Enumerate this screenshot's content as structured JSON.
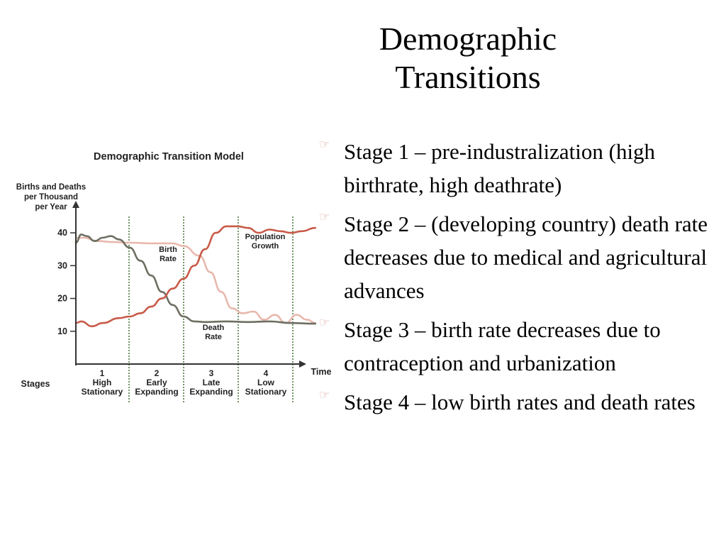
{
  "slide": {
    "title_line1": "Demographic",
    "title_line2": "Transitions",
    "bullets": [
      "Stage 1 – pre-industralization (high birthrate, high deathrate)",
      "Stage 2 – (developing country) death rate decreases due to medical and agricultural advances",
      "Stage 3 – birth rate decreases due to contraception and urbanization",
      "Stage 4 – low birth rates and death rates"
    ],
    "bullet_icon": "pointing-hand-icon"
  },
  "chart_data": {
    "type": "line",
    "title": "Demographic Transition Model",
    "ylabel_lines": [
      "Births and Deaths",
      "per Thousand",
      "per Year"
    ],
    "xlabel": "Time",
    "stages_label": "Stages",
    "yticks": [
      10,
      20,
      30,
      40
    ],
    "ylim": [
      0,
      45
    ],
    "xlim": [
      0,
      4.4
    ],
    "stages": [
      {
        "number": "1",
        "line1": "High",
        "line2": "Stationary"
      },
      {
        "number": "2",
        "line1": "Early",
        "line2": "Expanding"
      },
      {
        "number": "3",
        "line1": "Late",
        "line2": "Expanding"
      },
      {
        "number": "4",
        "line1": "Low",
        "line2": "Stationary"
      }
    ],
    "stage_boundaries": [
      1,
      2,
      3,
      4
    ],
    "annotations": {
      "birth_rate": [
        "Birth",
        "Rate"
      ],
      "death_rate": [
        "Death",
        "Rate"
      ],
      "population_growth": [
        "Population",
        "Growth"
      ]
    },
    "series": [
      {
        "name": "Birth Rate",
        "color": "#e8b8ad",
        "x": [
          0,
          0.15,
          0.4,
          0.7,
          1.0,
          1.4,
          1.8,
          2.0,
          2.3,
          2.5,
          2.7,
          2.9,
          3.1,
          3.3,
          3.5,
          3.7,
          3.9,
          4.1,
          4.3,
          4.45
        ],
        "y": [
          38.5,
          38.5,
          37.5,
          37.2,
          37,
          36.8,
          36.8,
          36,
          33,
          28,
          22,
          17,
          15.5,
          16,
          13.5,
          15,
          12.5,
          15,
          13.5,
          12.5
        ]
      },
      {
        "name": "Death Rate",
        "color": "#6e6e62",
        "x": [
          0,
          0.1,
          0.2,
          0.35,
          0.5,
          0.65,
          0.8,
          1.0,
          1.2,
          1.4,
          1.6,
          1.8,
          2.0,
          2.2,
          2.4,
          2.8,
          3.2,
          3.6,
          4.0,
          4.45
        ],
        "y": [
          37,
          39.5,
          39,
          37.5,
          38.5,
          39,
          38,
          35.5,
          31.5,
          27,
          22,
          18,
          14.5,
          13,
          12.8,
          13,
          12.8,
          13,
          12.5,
          12.3
        ]
      },
      {
        "name": "Population Growth",
        "color": "#c85a48",
        "x": [
          0,
          0.1,
          0.3,
          0.5,
          0.8,
          1.0,
          1.2,
          1.4,
          1.6,
          1.8,
          2.0,
          2.2,
          2.4,
          2.6,
          2.8,
          3.0,
          3.2,
          3.4,
          3.6,
          3.8,
          4.0,
          4.2,
          4.45
        ],
        "y": [
          12.5,
          13,
          11.5,
          12.5,
          14,
          14.5,
          15.5,
          17.5,
          20,
          23,
          26,
          30,
          35,
          40,
          42,
          42,
          41.5,
          40,
          41,
          40.5,
          40,
          40.5,
          41.5
        ]
      }
    ]
  }
}
